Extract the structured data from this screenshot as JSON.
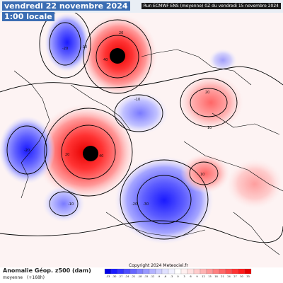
{
  "header": {
    "valid_date": "vendredi 22 novembre 2024",
    "valid_time": "1:00 locale",
    "run_info": "Run ECMWF ENS (moyenne) 0Z du vendredi 15 novembre 2024"
  },
  "footer": {
    "title": "Anomalie Géop. z500 (dam)",
    "subtitle_left": "moyenne",
    "subtitle_right": "(+168h)",
    "copyright": "Copyright 2024 Meteociel.fr"
  },
  "legend": {
    "values": [
      "-33",
      "-30",
      "-27",
      "-24",
      "-21",
      "-18",
      "-15",
      "-12",
      "-9",
      "-6",
      "-3",
      "0",
      "3",
      "6",
      "9",
      "12",
      "15",
      "18",
      "21",
      "24",
      "27",
      "30",
      "33"
    ],
    "colors": [
      "#0000e6",
      "#1a1aff",
      "#3333ff",
      "#4d4dff",
      "#6666ff",
      "#8080ff",
      "#9999ff",
      "#b3b3ff",
      "#ccccff",
      "#e0e0ff",
      "#f0f0ff",
      "#ffffff",
      "#fff0f0",
      "#ffe0e0",
      "#ffcccc",
      "#ffb3b3",
      "#ff9999",
      "#ff8080",
      "#ff6666",
      "#ff4d4d",
      "#ff3333",
      "#ff1a1a",
      "#e60000"
    ]
  },
  "colors": {
    "positive_core": "#e60000",
    "negative_core": "#2a2aff",
    "contour": "#000000"
  },
  "anomalies": [
    {
      "id": "ridge-north-pacific",
      "sign": "positive",
      "labels": [
        "20",
        "40"
      ]
    },
    {
      "id": "trough-alaska",
      "sign": "negative",
      "labels": [
        "-20",
        "-10"
      ]
    },
    {
      "id": "trough-east-siberia",
      "sign": "negative",
      "labels": [
        "-10"
      ]
    },
    {
      "id": "ridge-siberia",
      "sign": "positive",
      "labels": [
        "20",
        "10"
      ]
    },
    {
      "id": "ridge-greenland",
      "sign": "positive",
      "labels": [
        "20",
        "40"
      ]
    },
    {
      "id": "trough-hudson",
      "sign": "negative",
      "labels": [
        "-20"
      ]
    },
    {
      "id": "trough-europe",
      "sign": "negative",
      "labels": [
        "-20",
        "-30"
      ]
    },
    {
      "id": "trough-atlantic",
      "sign": "negative",
      "labels": [
        "-10"
      ]
    },
    {
      "id": "ridge-west-asia",
      "sign": "positive",
      "labels": [
        "10"
      ]
    }
  ]
}
